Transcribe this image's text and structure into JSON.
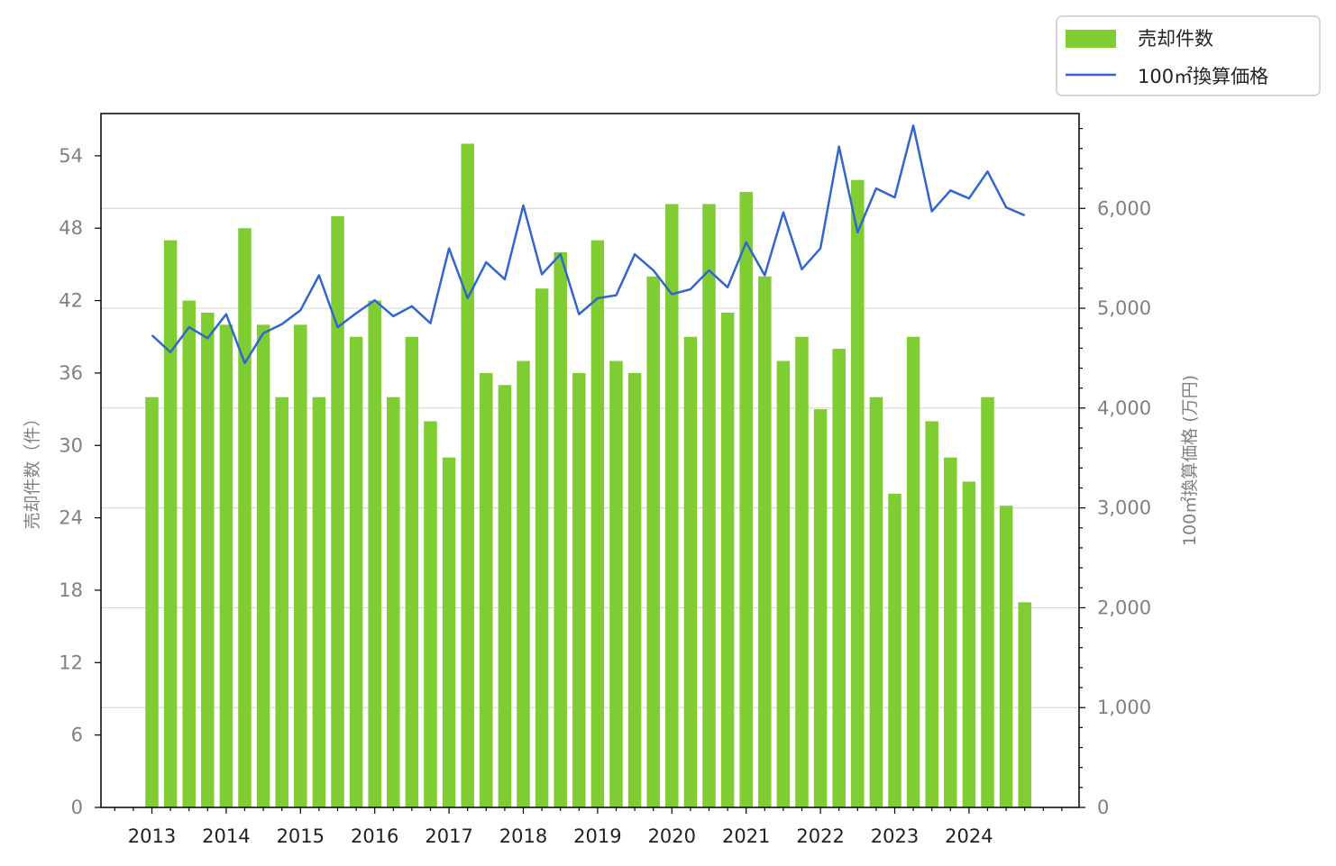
{
  "chart_data": {
    "type": "bar",
    "legend_position": "top-right",
    "grid": "horizontal (right axis)",
    "x_tick_labels": [
      "2013",
      "2014",
      "2015",
      "2016",
      "2017",
      "2018",
      "2019",
      "2020",
      "2021",
      "2022",
      "2023",
      "2024"
    ],
    "left_axis": {
      "label": "売却件数（件）",
      "ylim": [
        0,
        57.5
      ],
      "ticks": [
        "0",
        "6",
        "12",
        "18",
        "24",
        "30",
        "36",
        "42",
        "48",
        "54"
      ]
    },
    "right_axis": {
      "label": "100㎡換算価格 (万円)",
      "ylim": [
        0,
        6950
      ],
      "ticks": [
        "0",
        "1,000",
        "2,000",
        "3,000",
        "4,000",
        "5,000",
        "6,000"
      ]
    },
    "series": [
      {
        "name": "売却件数",
        "type": "bar",
        "color": "#80cc33",
        "axis": "left",
        "values": [
          34,
          47,
          42,
          41,
          40,
          48,
          40,
          34,
          40,
          34,
          49,
          39,
          42,
          34,
          39,
          32,
          29,
          55,
          36,
          35,
          37,
          43,
          46,
          36,
          47,
          37,
          36,
          44,
          50,
          39,
          50,
          41,
          51,
          44,
          37,
          39,
          33,
          38,
          52,
          34,
          26,
          39,
          32,
          29,
          27,
          34,
          25,
          17
        ]
      },
      {
        "name": "100㎡換算価格",
        "type": "line",
        "color": "#3366cc",
        "axis": "right",
        "values": [
          4730,
          4560,
          4810,
          4700,
          4940,
          4450,
          4750,
          4840,
          4980,
          5330,
          4810,
          4950,
          5080,
          4920,
          5020,
          4850,
          5600,
          5100,
          5460,
          5290,
          6030,
          5340,
          5540,
          4940,
          5100,
          5130,
          5540,
          5380,
          5140,
          5190,
          5380,
          5210,
          5660,
          5330,
          5960,
          5390,
          5600,
          6620,
          5760,
          6200,
          6110,
          6830,
          5970,
          6180,
          6100,
          6370,
          6010,
          5930
        ]
      }
    ]
  }
}
